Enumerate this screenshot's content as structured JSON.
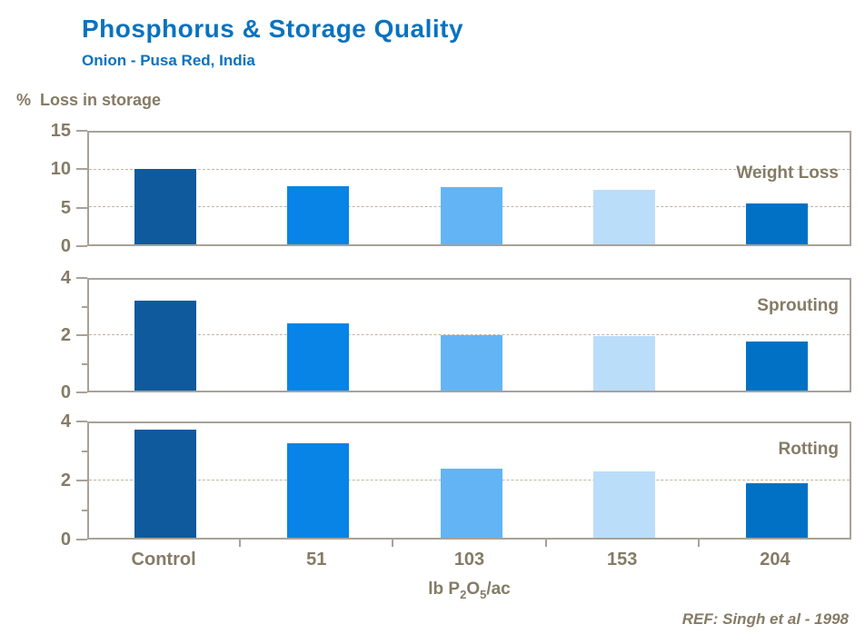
{
  "header": {
    "title": "Phosphorus & Storage Quality",
    "subtitle": "Onion - Pusa Red, India"
  },
  "chart": {
    "y_axis_title": "%  Loss in storage",
    "x_title_pre": "lb P",
    "x_title_sub1": "2",
    "x_title_mid": "O",
    "x_title_sub2": "5",
    "x_title_post": "/ac"
  },
  "footer": {
    "reference": "REF: Singh et al - 1998"
  },
  "colors": {
    "title_blue": "#0B72BE",
    "axis_text": "#857B66",
    "panel_border": "#A8A298",
    "gridline": "#BEB5A5"
  },
  "chart_data": {
    "type": "bar",
    "title": "Phosphorus & Storage Quality",
    "subtitle": "Onion - Pusa Red, India",
    "ylabel": "% Loss in storage",
    "xlabel": "lb P2O5/ac",
    "categories": [
      "Control",
      "51",
      "103",
      "153",
      "204"
    ],
    "bar_colors": [
      "#0E5A9C",
      "#0784E6",
      "#63B4F5",
      "#BADDFA",
      "#0071C4"
    ],
    "grid": "dashed horizontal at labeled ticks",
    "legend": "none; each panel labeled at top right",
    "panels": [
      {
        "label": "Weight Loss",
        "ylim": [
          0,
          15
        ],
        "yticks": [
          0,
          5,
          10,
          15
        ],
        "minor_ticks": [],
        "values": [
          9.8,
          7.6,
          7.4,
          7.1,
          5.3
        ]
      },
      {
        "label": "Sprouting",
        "ylim": [
          0,
          4
        ],
        "yticks": [
          0,
          2,
          4
        ],
        "minor_ticks": [
          1,
          3
        ],
        "values": [
          3.15,
          2.35,
          1.95,
          1.9,
          1.7
        ]
      },
      {
        "label": "Rotting",
        "ylim": [
          0,
          4
        ],
        "yticks": [
          0,
          2,
          4
        ],
        "minor_ticks": [
          1,
          3
        ],
        "values": [
          3.65,
          3.2,
          2.35,
          2.25,
          1.85
        ]
      }
    ]
  }
}
